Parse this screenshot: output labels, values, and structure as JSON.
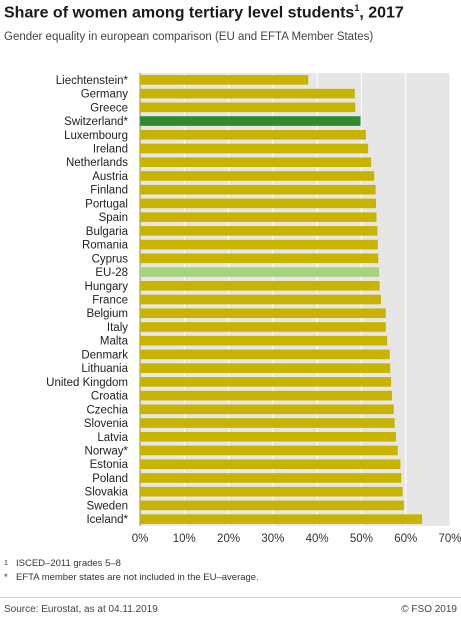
{
  "header": {
    "title": "Share of women among tertiary level students",
    "title_sup": "1",
    "title_suffix": ", 2017",
    "subtitle": "Gender equality in european comparison (EU and EFTA Member States)"
  },
  "chart_data": {
    "type": "bar",
    "orientation": "horizontal",
    "categories": [
      "Liechtenstein*",
      "Germany",
      "Greece",
      "Switzerland*",
      "Luxembourg",
      "Ireland",
      "Netherlands",
      "Austria",
      "Finland",
      "Portugal",
      "Spain",
      "Bulgaria",
      "Romania",
      "Cyprus",
      "EU-28",
      "Hungary",
      "France",
      "Belgium",
      "Italy",
      "Malta",
      "Denmark",
      "Lithuania",
      "United Kingdom",
      "Croatia",
      "Czechia",
      "Slovenia",
      "Latvia",
      "Norway*",
      "Estonia",
      "Poland",
      "Slovakia",
      "Sweden",
      "Iceland*"
    ],
    "values": [
      38.0,
      48.5,
      48.6,
      49.8,
      51.0,
      51.5,
      52.2,
      52.9,
      53.2,
      53.3,
      53.4,
      53.6,
      53.7,
      53.8,
      54.0,
      54.1,
      54.4,
      55.5,
      55.5,
      55.8,
      56.4,
      56.5,
      56.7,
      56.9,
      57.3,
      57.5,
      57.8,
      58.2,
      58.8,
      59.0,
      59.3,
      59.6,
      63.7
    ],
    "highlight": {
      "Switzerland*": "#2e8b2e",
      "EU-28": "#a6d37c"
    },
    "bar_color": "#c8b400",
    "xlim": [
      0,
      70
    ],
    "xticks": [
      "0%",
      "10%",
      "20%",
      "30%",
      "40%",
      "50%",
      "60%",
      "70%"
    ],
    "grid": true,
    "xlabel": "",
    "ylabel": ""
  },
  "notes": [
    {
      "mark": "1",
      "text": "ISCED–2011 grades 5–8"
    },
    {
      "mark": "*",
      "text": "EFTA member states are not included in the EU–average."
    }
  ],
  "footer": {
    "source": "Source: Eurostat,  as at 04.11.2019",
    "copyright": "© FSO 2019"
  }
}
